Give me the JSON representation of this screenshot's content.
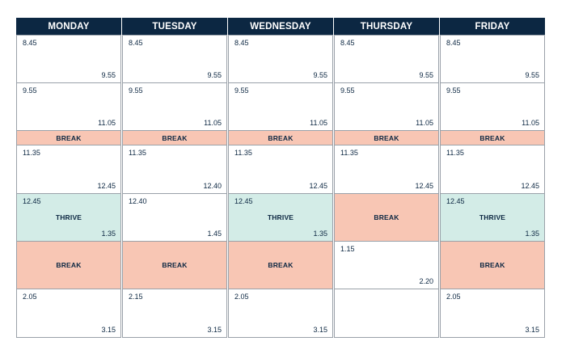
{
  "colors": {
    "header_bg": "#0c2742",
    "text": "#0c2742",
    "break_bg": "#f8c6b4",
    "thrive_bg": "#d3ece7",
    "border": "#9aa1a9"
  },
  "days": [
    {
      "name": "MONDAY",
      "slots": [
        {
          "type": "lesson",
          "start": "8.45",
          "end": "9.55"
        },
        {
          "type": "lesson",
          "start": "9.55",
          "end": "11.05"
        },
        {
          "type": "break",
          "label": "BREAK"
        },
        {
          "type": "lesson",
          "start": "11.35",
          "end": "12.45"
        },
        {
          "type": "thrive",
          "start": "12.45",
          "label": "THRIVE",
          "end": "1.35"
        },
        {
          "type": "break",
          "label": "BREAK"
        },
        {
          "type": "lesson",
          "start": "2.05",
          "end": "3.15"
        }
      ]
    },
    {
      "name": "TUESDAY",
      "slots": [
        {
          "type": "lesson",
          "start": "8.45",
          "end": "9.55"
        },
        {
          "type": "lesson",
          "start": "9.55",
          "end": "11.05"
        },
        {
          "type": "break",
          "label": "BREAK"
        },
        {
          "type": "lesson",
          "start": "11.35",
          "end": "12.40"
        },
        {
          "type": "lesson",
          "start": "12.40",
          "end": "1.45"
        },
        {
          "type": "break",
          "label": "BREAK"
        },
        {
          "type": "lesson",
          "start": "2.15",
          "end": "3.15"
        }
      ]
    },
    {
      "name": "WEDNESDAY",
      "slots": [
        {
          "type": "lesson",
          "start": "8.45",
          "end": "9.55"
        },
        {
          "type": "lesson",
          "start": "9.55",
          "end": "11.05"
        },
        {
          "type": "break",
          "label": "BREAK"
        },
        {
          "type": "lesson",
          "start": "11.35",
          "end": "12.45"
        },
        {
          "type": "thrive",
          "start": "12.45",
          "label": "THRIVE",
          "end": "1.35"
        },
        {
          "type": "break",
          "label": "BREAK"
        },
        {
          "type": "lesson",
          "start": "2.05",
          "end": "3.15"
        }
      ]
    },
    {
      "name": "THURSDAY",
      "slots": [
        {
          "type": "lesson",
          "start": "8.45",
          "end": "9.55"
        },
        {
          "type": "lesson",
          "start": "9.55",
          "end": "11.05"
        },
        {
          "type": "break",
          "label": "BREAK"
        },
        {
          "type": "lesson",
          "start": "11.35",
          "end": "12.45"
        },
        {
          "type": "break",
          "label": "BREAK"
        },
        {
          "type": "lesson",
          "start": "1.15",
          "end": "2.20"
        },
        {
          "type": "empty"
        }
      ]
    },
    {
      "name": "FRIDAY",
      "slots": [
        {
          "type": "lesson",
          "start": "8.45",
          "end": "9.55"
        },
        {
          "type": "lesson",
          "start": "9.55",
          "end": "11.05"
        },
        {
          "type": "break",
          "label": "BREAK"
        },
        {
          "type": "lesson",
          "start": "11.35",
          "end": "12.45"
        },
        {
          "type": "thrive",
          "start": "12.45",
          "label": "THRIVE",
          "end": "1.35"
        },
        {
          "type": "break",
          "label": "BREAK"
        },
        {
          "type": "lesson",
          "start": "2.05",
          "end": "3.15"
        }
      ]
    }
  ]
}
